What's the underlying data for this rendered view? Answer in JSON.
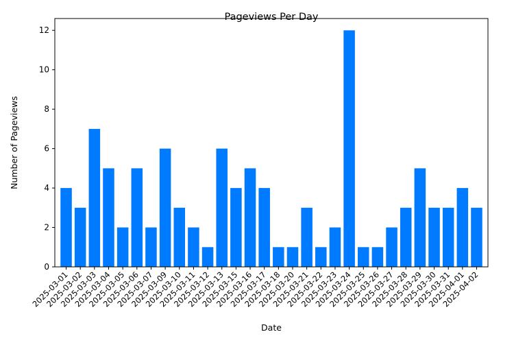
{
  "chart_data": {
    "type": "bar",
    "title": "Pageviews Per Day",
    "xlabel": "Date",
    "ylabel": "Number of Pageviews",
    "ylim": [
      0,
      12.6
    ],
    "yticks": [
      0,
      2,
      4,
      6,
      8,
      10,
      12
    ],
    "grid": false,
    "legend": "none",
    "bar_color": "#007bff",
    "categories": [
      "2025-03-01",
      "2025-03-02",
      "2025-03-03",
      "2025-03-04",
      "2025-03-05",
      "2025-03-06",
      "2025-03-07",
      "2025-03-09",
      "2025-03-10",
      "2025-03-11",
      "2025-03-12",
      "2025-03-13",
      "2025-03-15",
      "2025-03-16",
      "2025-03-17",
      "2025-03-18",
      "2025-03-20",
      "2025-03-21",
      "2025-03-22",
      "2025-03-23",
      "2025-03-24",
      "2025-03-25",
      "2025-03-26",
      "2025-03-27",
      "2025-03-28",
      "2025-03-29",
      "2025-03-30",
      "2025-03-31",
      "2025-04-01",
      "2025-04-02"
    ],
    "values": [
      4,
      3,
      7,
      5,
      2,
      5,
      2,
      6,
      3,
      2,
      1,
      6,
      4,
      5,
      4,
      1,
      1,
      3,
      1,
      2,
      12,
      1,
      1,
      2,
      3,
      5,
      3,
      3,
      4,
      3
    ]
  }
}
